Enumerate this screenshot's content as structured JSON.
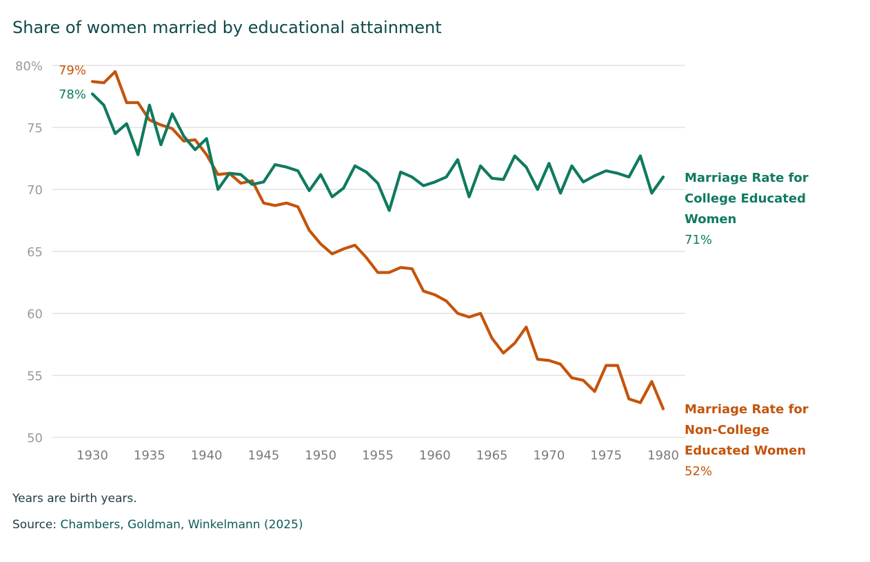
{
  "chart_data": {
    "type": "line",
    "title": "Share of women married by educational attainment",
    "xlabel": "",
    "ylabel": "",
    "xlim": [
      1930,
      1980
    ],
    "ylim": [
      50,
      80
    ],
    "grid": true,
    "x_ticks": [
      "1930",
      "1935",
      "1940",
      "1945",
      "1950",
      "1955",
      "1960",
      "1965",
      "1970",
      "1975",
      "1980"
    ],
    "y_ticks": [
      "80%",
      "75",
      "70",
      "65",
      "60",
      "55",
      "50"
    ],
    "x": [
      1930,
      1931,
      1932,
      1933,
      1934,
      1935,
      1936,
      1937,
      1938,
      1939,
      1940,
      1941,
      1942,
      1943,
      1944,
      1945,
      1946,
      1947,
      1948,
      1949,
      1950,
      1951,
      1952,
      1953,
      1954,
      1955,
      1956,
      1957,
      1958,
      1959,
      1960,
      1961,
      1962,
      1963,
      1964,
      1965,
      1966,
      1967,
      1968,
      1969,
      1970,
      1971,
      1972,
      1973,
      1974,
      1975,
      1976,
      1977,
      1978,
      1979,
      1980
    ],
    "series": [
      {
        "name": "Marriage Rate for College Educated Women",
        "label_lines": [
          "Marriage Rate for",
          "College Educated",
          "Women"
        ],
        "start_label": "78%",
        "end_label": "71%",
        "color": "#0f7a60",
        "values": [
          77.7,
          76.8,
          74.5,
          75.3,
          72.8,
          76.8,
          73.6,
          76.1,
          74.3,
          73.2,
          74.1,
          70.0,
          71.3,
          71.2,
          70.4,
          70.6,
          72.0,
          71.8,
          71.5,
          69.9,
          71.2,
          69.4,
          70.1,
          71.9,
          71.4,
          70.5,
          68.3,
          71.4,
          71.0,
          70.3,
          70.6,
          71.0,
          72.4,
          69.4,
          71.9,
          70.9,
          70.8,
          72.7,
          71.8,
          70.0,
          72.1,
          69.7,
          71.9,
          70.6,
          71.1,
          71.5,
          71.3,
          71.0,
          72.7,
          69.7,
          71.0
        ]
      },
      {
        "name": "Marriage Rate for Non-College Educated Women",
        "label_lines": [
          "Marriage Rate for",
          "Non-College",
          "Educated Women"
        ],
        "start_label": "79%",
        "end_label": "52%",
        "color": "#c4540b",
        "values": [
          78.7,
          78.6,
          79.5,
          77.0,
          77.0,
          75.6,
          75.2,
          74.9,
          73.9,
          74.0,
          72.8,
          71.2,
          71.3,
          70.5,
          70.7,
          68.9,
          68.7,
          68.9,
          68.6,
          66.7,
          65.6,
          64.8,
          65.2,
          65.5,
          64.5,
          63.3,
          63.3,
          63.7,
          63.6,
          61.8,
          61.5,
          61.0,
          60.0,
          59.7,
          60.0,
          58.0,
          56.8,
          57.6,
          58.9,
          56.3,
          56.2,
          55.9,
          54.8,
          54.6,
          53.7,
          55.8,
          55.8,
          53.1,
          52.8,
          54.5,
          52.3
        ]
      }
    ]
  },
  "footer": {
    "note": "Years are birth years.",
    "source_prefix": "Source: ",
    "source_text": "Chambers, Goldman, Winkelmann (2025)"
  }
}
